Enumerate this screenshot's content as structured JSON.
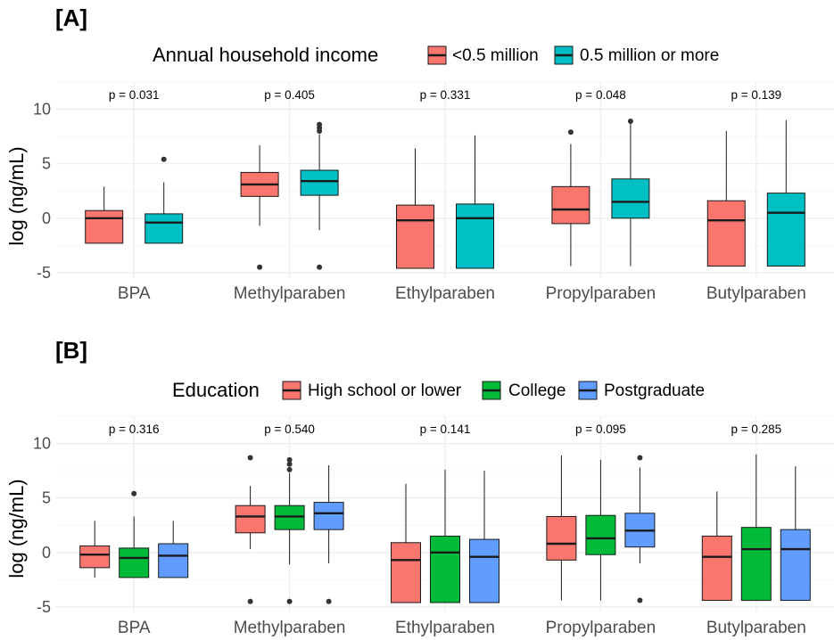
{
  "chart_data": [
    {
      "type": "boxplot",
      "panel_label": "[A]",
      "legend_title": "Annual household income",
      "ylabel": "log (ng/mL)",
      "ylim": [
        -5.5,
        12.5
      ],
      "yticks": [
        -5,
        0,
        5,
        10
      ],
      "ytick_labels": [
        "-5",
        "0",
        "5",
        "10"
      ],
      "categories": [
        "BPA",
        "Methylparaben",
        "Ethylparaben",
        "Propylparaben",
        "Butylparaben"
      ],
      "p_values": [
        "p = 0.031",
        "p = 0.405",
        "p = 0.331",
        "p = 0.048",
        "p = 0.139"
      ],
      "series": [
        {
          "name": "<0.5 million",
          "color": "#F8766D",
          "boxes": [
            {
              "min": -2.3,
              "q1": -2.3,
              "median": 0.0,
              "q3": 0.7,
              "max": 2.9,
              "outliers": []
            },
            {
              "min": -0.7,
              "q1": 2.0,
              "median": 3.1,
              "q3": 4.2,
              "max": 6.7,
              "outliers": [
                -4.5
              ]
            },
            {
              "min": -4.6,
              "q1": -4.6,
              "median": -0.2,
              "q3": 1.2,
              "max": 6.4,
              "outliers": []
            },
            {
              "min": -4.4,
              "q1": -0.5,
              "median": 0.8,
              "q3": 2.9,
              "max": 6.8,
              "outliers": [
                7.9
              ]
            },
            {
              "min": -4.4,
              "q1": -4.4,
              "median": -0.2,
              "q3": 1.6,
              "max": 8.0,
              "outliers": []
            }
          ]
        },
        {
          "name": "0.5 million or more",
          "color": "#00BFC4",
          "boxes": [
            {
              "min": -2.3,
              "q1": -2.3,
              "median": -0.4,
              "q3": 0.4,
              "max": 3.3,
              "outliers": [
                5.4
              ]
            },
            {
              "min": -1.1,
              "q1": 2.1,
              "median": 3.4,
              "q3": 4.4,
              "max": 7.7,
              "outliers": [
                -4.5,
                8.0,
                8.3,
                8.6
              ]
            },
            {
              "min": -4.6,
              "q1": -4.6,
              "median": 0.0,
              "q3": 1.3,
              "max": 7.6,
              "outliers": []
            },
            {
              "min": -4.4,
              "q1": 0.0,
              "median": 1.5,
              "q3": 3.6,
              "max": 8.8,
              "outliers": [
                8.9
              ]
            },
            {
              "min": -4.4,
              "q1": -4.4,
              "median": 0.5,
              "q3": 2.3,
              "max": 9.0,
              "outliers": []
            }
          ]
        }
      ]
    },
    {
      "type": "boxplot",
      "panel_label": "[B]",
      "legend_title": "Education",
      "ylabel": "log (ng/mL)",
      "ylim": [
        -5.5,
        12.5
      ],
      "yticks": [
        -5,
        0,
        5,
        10
      ],
      "ytick_labels": [
        "-5",
        "0",
        "5",
        "10"
      ],
      "categories": [
        "BPA",
        "Methylparaben",
        "Ethylparaben",
        "Propylparaben",
        "Butylparaben"
      ],
      "p_values": [
        "p = 0.316",
        "p = 0.540",
        "p = 0.141",
        "p = 0.095",
        "p = 0.285"
      ],
      "series": [
        {
          "name": "High school or lower",
          "color": "#F8766D",
          "boxes": [
            {
              "min": -2.3,
              "q1": -1.4,
              "median": -0.2,
              "q3": 0.6,
              "max": 2.9,
              "outliers": []
            },
            {
              "min": 0.3,
              "q1": 1.8,
              "median": 3.3,
              "q3": 4.3,
              "max": 6.1,
              "outliers": [
                -4.5,
                8.7
              ]
            },
            {
              "min": -4.6,
              "q1": -4.6,
              "median": -0.7,
              "q3": 0.9,
              "max": 6.3,
              "outliers": []
            },
            {
              "min": -4.4,
              "q1": -0.7,
              "median": 0.8,
              "q3": 3.3,
              "max": 8.9,
              "outliers": []
            },
            {
              "min": -4.4,
              "q1": -4.4,
              "median": -0.4,
              "q3": 1.5,
              "max": 5.6,
              "outliers": []
            }
          ]
        },
        {
          "name": "College",
          "color": "#00BA38",
          "boxes": [
            {
              "min": -2.3,
              "q1": -2.3,
              "median": -0.5,
              "q3": 0.4,
              "max": 3.3,
              "outliers": [
                5.4
              ]
            },
            {
              "min": -1.1,
              "q1": 2.1,
              "median": 3.3,
              "q3": 4.3,
              "max": 7.3,
              "outliers": [
                -4.5,
                7.6,
                8.1,
                8.5
              ]
            },
            {
              "min": -4.6,
              "q1": -4.6,
              "median": 0.0,
              "q3": 1.5,
              "max": 7.6,
              "outliers": []
            },
            {
              "min": -4.4,
              "q1": -0.2,
              "median": 1.3,
              "q3": 3.4,
              "max": 8.5,
              "outliers": []
            },
            {
              "min": -4.4,
              "q1": -4.4,
              "median": 0.3,
              "q3": 2.3,
              "max": 9.0,
              "outliers": []
            }
          ]
        },
        {
          "name": "Postgraduate",
          "color": "#619CFF",
          "boxes": [
            {
              "min": -2.3,
              "q1": -2.3,
              "median": -0.3,
              "q3": 0.8,
              "max": 2.9,
              "outliers": []
            },
            {
              "min": -1.0,
              "q1": 2.1,
              "median": 3.6,
              "q3": 4.6,
              "max": 8.0,
              "outliers": [
                -4.5
              ]
            },
            {
              "min": -4.6,
              "q1": -4.6,
              "median": -0.4,
              "q3": 1.2,
              "max": 7.5,
              "outliers": []
            },
            {
              "min": -1.0,
              "q1": 0.5,
              "median": 2.0,
              "q3": 3.6,
              "max": 7.8,
              "outliers": [
                -4.4,
                8.7
              ]
            },
            {
              "min": -4.4,
              "q1": -4.4,
              "median": 0.3,
              "q3": 2.1,
              "max": 7.9,
              "outliers": []
            }
          ]
        }
      ]
    }
  ]
}
